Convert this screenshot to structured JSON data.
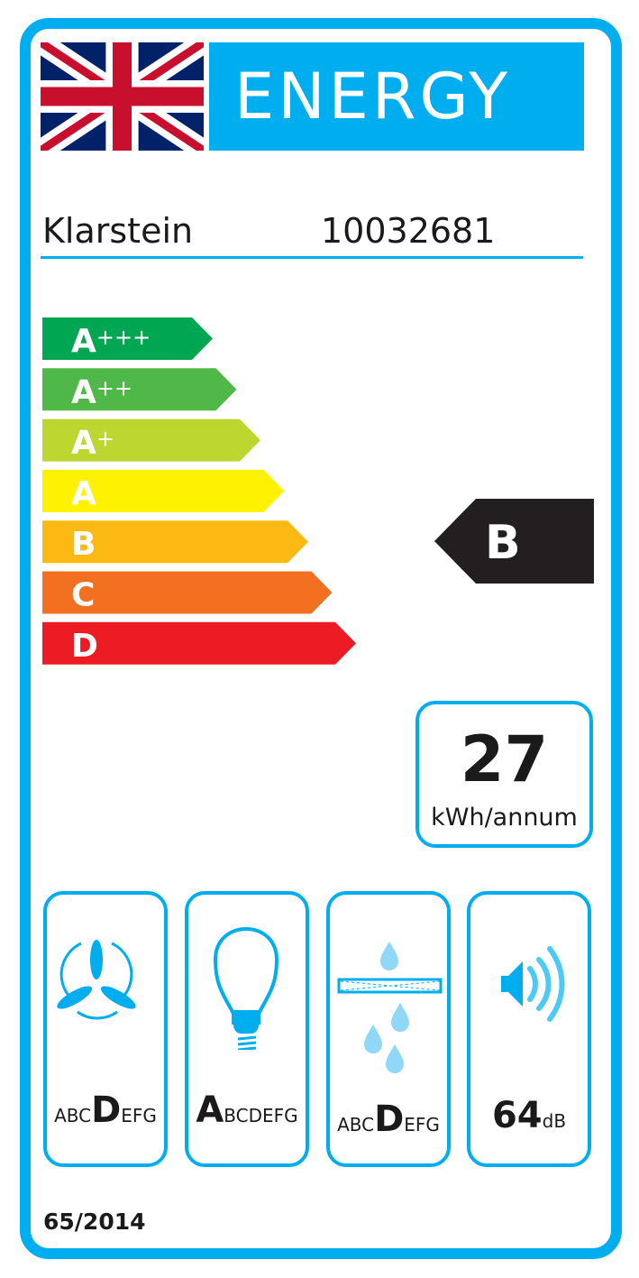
{
  "header": {
    "title": "ENERGY",
    "flag_icon": "uk-flag-icon"
  },
  "product": {
    "brand": "Klarstein",
    "model": "10032681"
  },
  "scale": {
    "classes": [
      {
        "letter": "A",
        "plus": "+++",
        "color": "#00a651"
      },
      {
        "letter": "A",
        "plus": "++",
        "color": "#50b848"
      },
      {
        "letter": "A",
        "plus": "+",
        "color": "#bed630"
      },
      {
        "letter": "A",
        "plus": "",
        "color": "#fff200"
      },
      {
        "letter": "B",
        "plus": "",
        "color": "#fdb913"
      },
      {
        "letter": "C",
        "plus": "",
        "color": "#f37021"
      },
      {
        "letter": "D",
        "plus": "",
        "color": "#ed1c24"
      }
    ],
    "rating": "B",
    "rating_color": "#231f20"
  },
  "consumption": {
    "value": "27",
    "unit": "kWh/annum"
  },
  "features": {
    "fluid": {
      "icon": "fan-icon",
      "before": "ABC",
      "class": "D",
      "after": "EFG"
    },
    "lighting": {
      "icon": "light-bulb-icon",
      "before": "",
      "class": "A",
      "after": "BCDEFG"
    },
    "grease": {
      "icon": "grease-filter-icon",
      "before": "ABC",
      "class": "D",
      "after": "EFG"
    },
    "noise": {
      "icon": "speaker-icon",
      "value": "64",
      "unit": "dB"
    }
  },
  "footer": {
    "regulation": "65/2014"
  },
  "colors": {
    "accent": "#00aeef"
  }
}
